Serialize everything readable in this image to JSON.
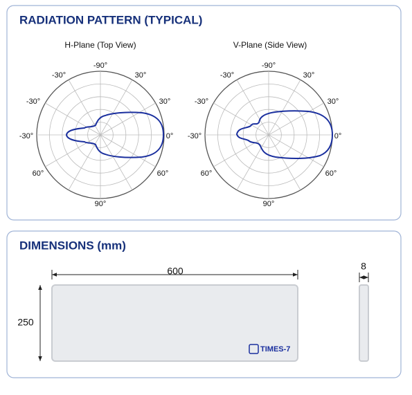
{
  "radiation": {
    "title": "RADIATION PATTERN (TYPICAL)",
    "plots": [
      {
        "title": "H-Plane (Top View)",
        "angle_labels": [
          "-90°",
          "-30°",
          "30°",
          "-30°",
          "30°",
          "-30°",
          "0°",
          "60°",
          "60°",
          "90°"
        ]
      },
      {
        "title": "V-Plane (Side View)",
        "angle_labels": [
          "-90°",
          "-30°",
          "30°",
          "-30°",
          "30°",
          "-30°",
          "0°",
          "60°",
          "60°",
          "90°"
        ]
      }
    ]
  },
  "dimensions": {
    "title": "DIMENSIONS (mm)",
    "width": "600",
    "height": "250",
    "depth": "8",
    "logo": "TIMES-7"
  }
}
